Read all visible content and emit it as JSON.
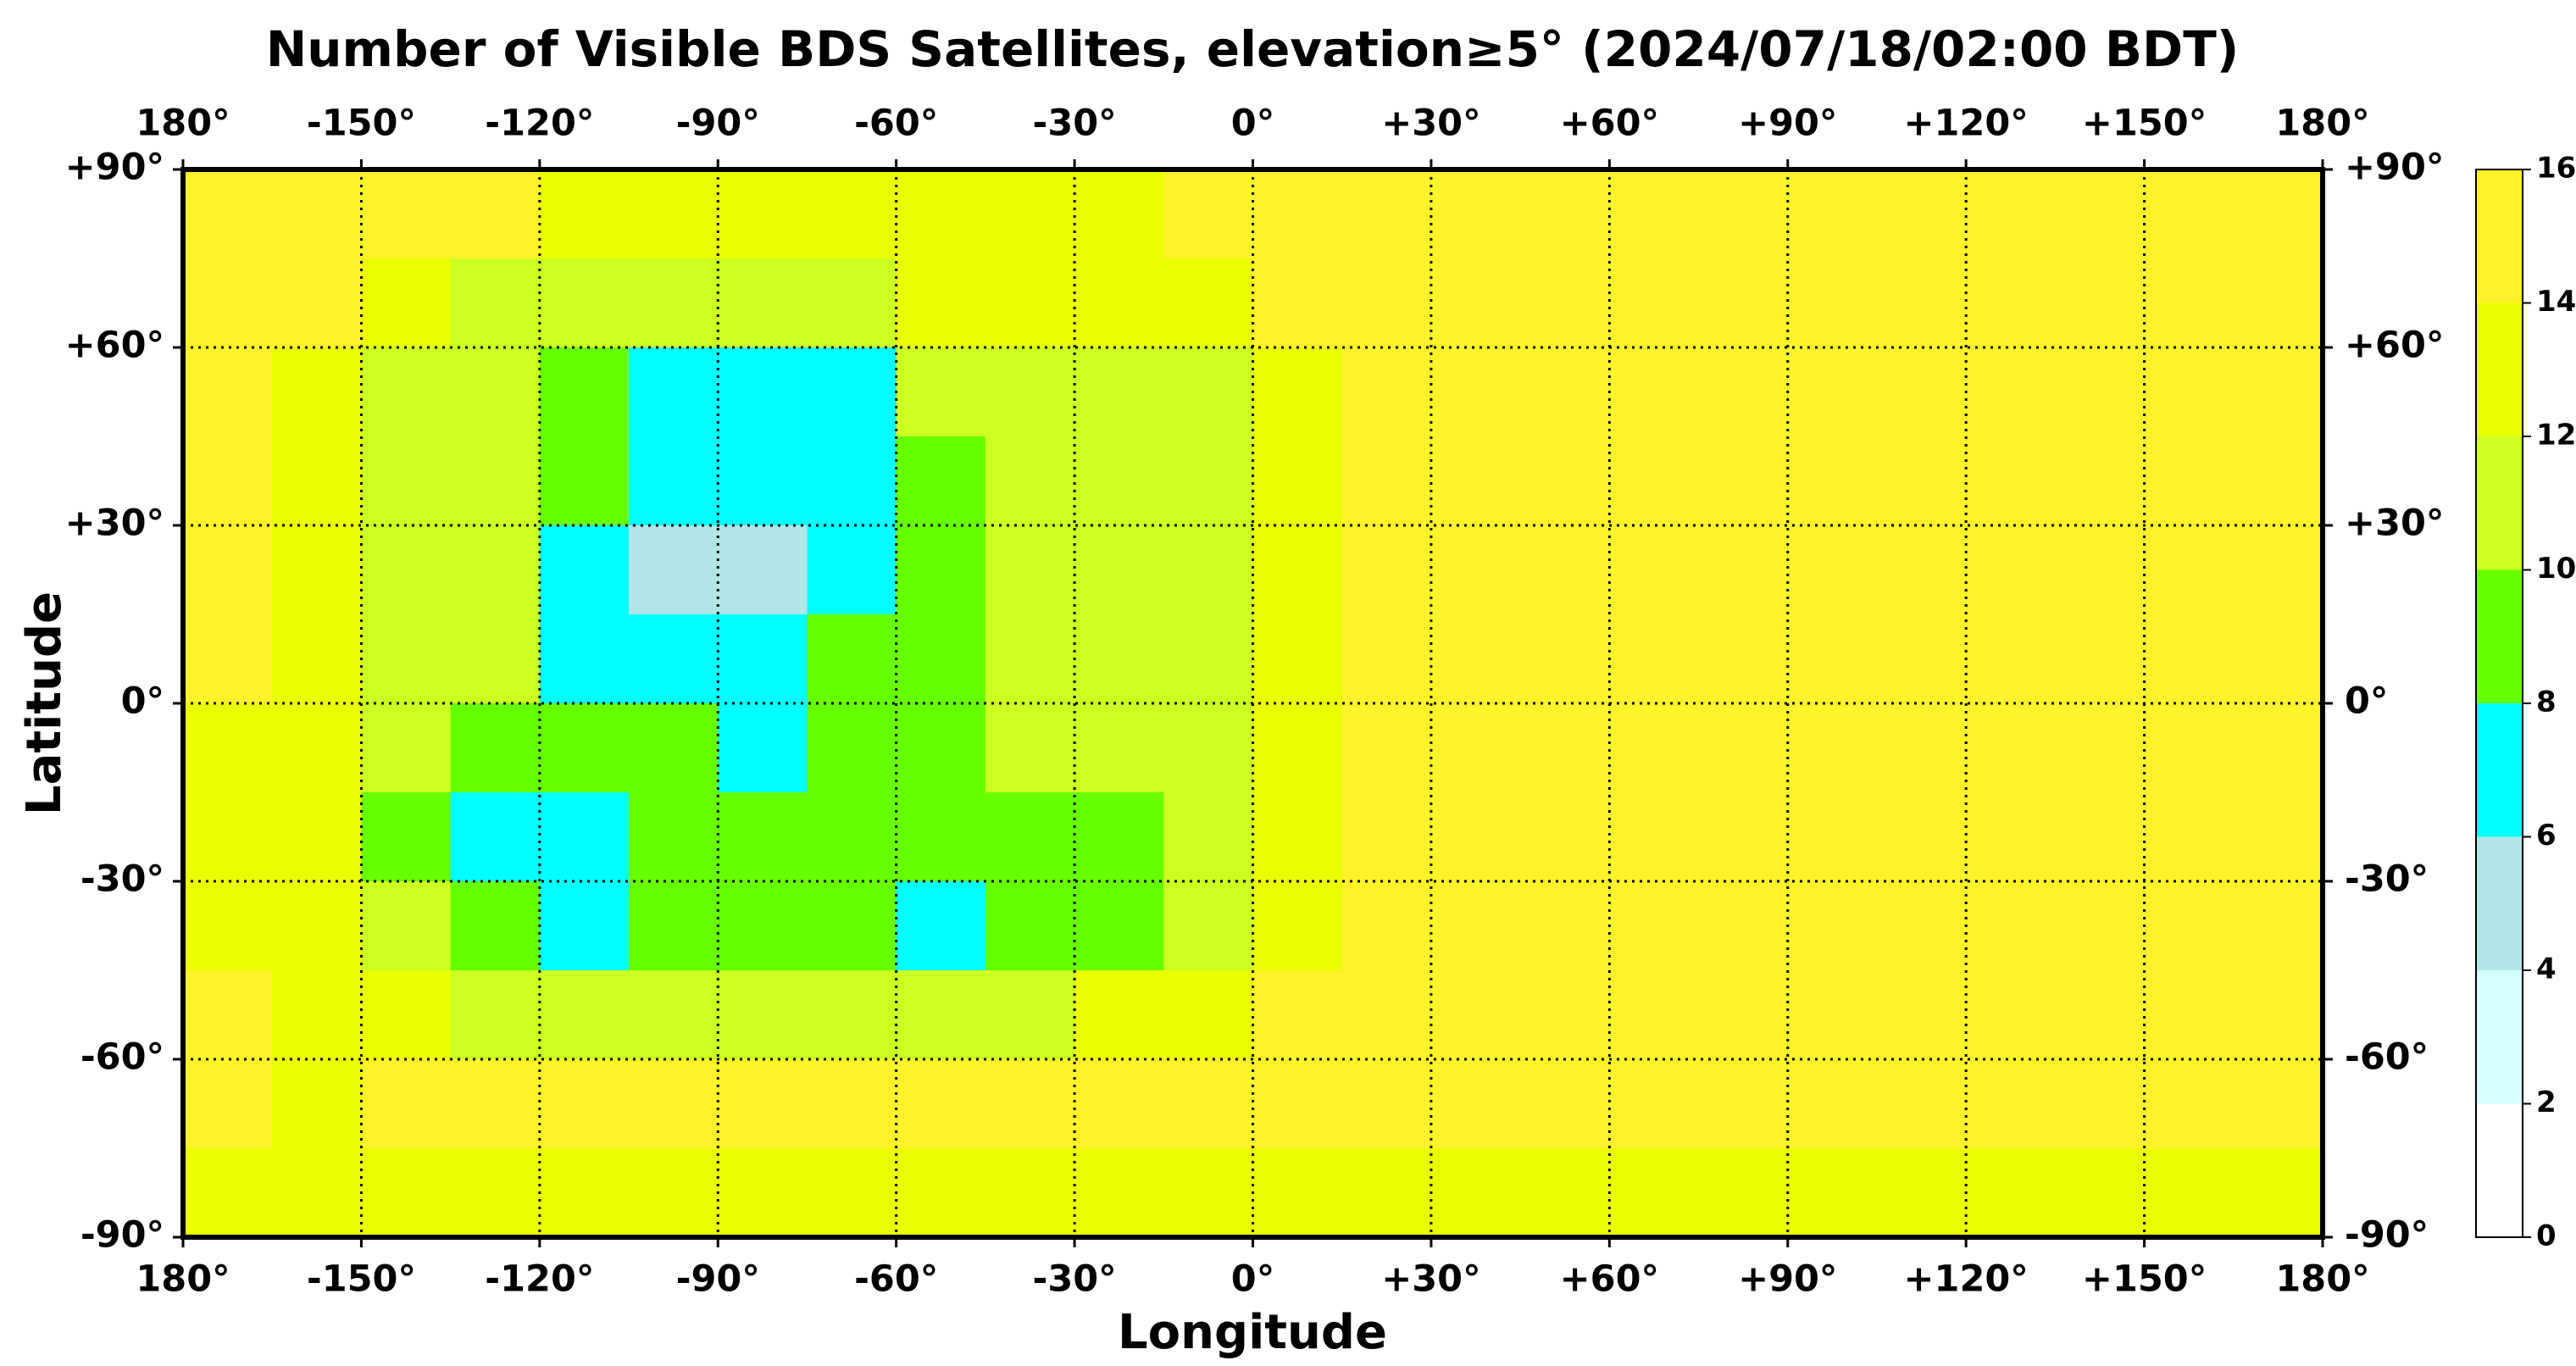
{
  "chart_data": {
    "type": "heatmap",
    "title": "Number of Visible BDS Satellites, elevation≥5° (2024/07/18/02:00 BDT)",
    "xlabel": "Longitude",
    "ylabel": "Latitude",
    "xlim": [
      -180,
      180
    ],
    "ylim": [
      -90,
      90
    ],
    "xticks": [
      {
        "value": -180,
        "label": "180°"
      },
      {
        "value": -150,
        "label": "-150°"
      },
      {
        "value": -120,
        "label": "-120°"
      },
      {
        "value": -90,
        "label": "-90°"
      },
      {
        "value": -60,
        "label": "-60°"
      },
      {
        "value": -30,
        "label": "-30°"
      },
      {
        "value": 0,
        "label": "0°"
      },
      {
        "value": 30,
        "label": "+30°"
      },
      {
        "value": 60,
        "label": "+60°"
      },
      {
        "value": 90,
        "label": "+90°"
      },
      {
        "value": 120,
        "label": "+120°"
      },
      {
        "value": 150,
        "label": "+150°"
      },
      {
        "value": 180,
        "label": "180°"
      }
    ],
    "yticks": [
      {
        "value": 90,
        "label": "+90°"
      },
      {
        "value": 60,
        "label": "+60°"
      },
      {
        "value": 30,
        "label": "+30°"
      },
      {
        "value": 0,
        "label": "0°"
      },
      {
        "value": -30,
        "label": "-30°"
      },
      {
        "value": -60,
        "label": "-60°"
      },
      {
        "value": -90,
        "label": "-90°"
      }
    ],
    "grid": true,
    "values": [
      [
        15,
        15,
        15,
        15,
        13,
        13,
        13,
        13,
        13,
        13,
        13,
        15,
        15,
        15,
        15,
        15,
        15,
        15,
        15,
        15,
        15,
        15,
        15,
        15
      ],
      [
        15,
        15,
        13,
        11,
        11,
        11,
        11,
        11,
        13,
        13,
        13,
        13,
        15,
        15,
        15,
        15,
        15,
        15,
        15,
        15,
        15,
        15,
        15,
        15
      ],
      [
        15,
        13,
        11,
        11,
        9,
        7,
        7,
        7,
        11,
        11,
        11,
        11,
        13,
        15,
        15,
        15,
        15,
        15,
        15,
        15,
        15,
        15,
        15,
        15
      ],
      [
        15,
        13,
        11,
        11,
        9,
        7,
        7,
        7,
        9,
        11,
        11,
        11,
        13,
        15,
        15,
        15,
        15,
        15,
        15,
        15,
        15,
        15,
        15,
        15
      ],
      [
        15,
        13,
        11,
        11,
        7,
        5,
        5,
        7,
        9,
        11,
        11,
        11,
        13,
        15,
        15,
        15,
        15,
        15,
        15,
        15,
        15,
        15,
        15,
        15
      ],
      [
        15,
        13,
        11,
        11,
        7,
        7,
        7,
        9,
        9,
        11,
        11,
        11,
        13,
        15,
        15,
        15,
        15,
        15,
        15,
        15,
        15,
        15,
        15,
        15
      ],
      [
        13,
        13,
        11,
        9,
        9,
        9,
        7,
        9,
        9,
        11,
        11,
        11,
        13,
        15,
        15,
        15,
        15,
        15,
        15,
        15,
        15,
        15,
        15,
        15
      ],
      [
        13,
        13,
        9,
        7,
        7,
        9,
        9,
        9,
        9,
        9,
        9,
        11,
        13,
        15,
        15,
        15,
        15,
        15,
        15,
        15,
        15,
        15,
        15,
        15
      ],
      [
        13,
        13,
        11,
        9,
        7,
        9,
        9,
        9,
        7,
        9,
        9,
        11,
        13,
        15,
        15,
        15,
        15,
        15,
        15,
        15,
        15,
        15,
        15,
        15
      ],
      [
        15,
        13,
        13,
        11,
        11,
        11,
        11,
        11,
        11,
        11,
        13,
        13,
        15,
        15,
        15,
        15,
        15,
        15,
        15,
        15,
        15,
        15,
        15,
        15
      ],
      [
        15,
        13,
        15,
        15,
        15,
        15,
        15,
        15,
        15,
        15,
        15,
        15,
        15,
        15,
        15,
        15,
        15,
        15,
        15,
        15,
        15,
        15,
        15,
        15
      ],
      [
        13,
        13,
        13,
        13,
        13,
        13,
        13,
        13,
        13,
        13,
        13,
        13,
        13,
        13,
        13,
        13,
        13,
        13,
        13,
        13,
        13,
        13,
        13,
        13
      ]
    ],
    "colorbar": {
      "ticks": [
        0,
        2,
        4,
        6,
        8,
        10,
        12,
        14,
        16
      ],
      "colors": [
        "#ffffff",
        "#d6ffff",
        "#b0e6e6",
        "#00ffff",
        "#66ff00",
        "#ccff22",
        "#eaff00",
        "#fff22a"
      ]
    }
  }
}
